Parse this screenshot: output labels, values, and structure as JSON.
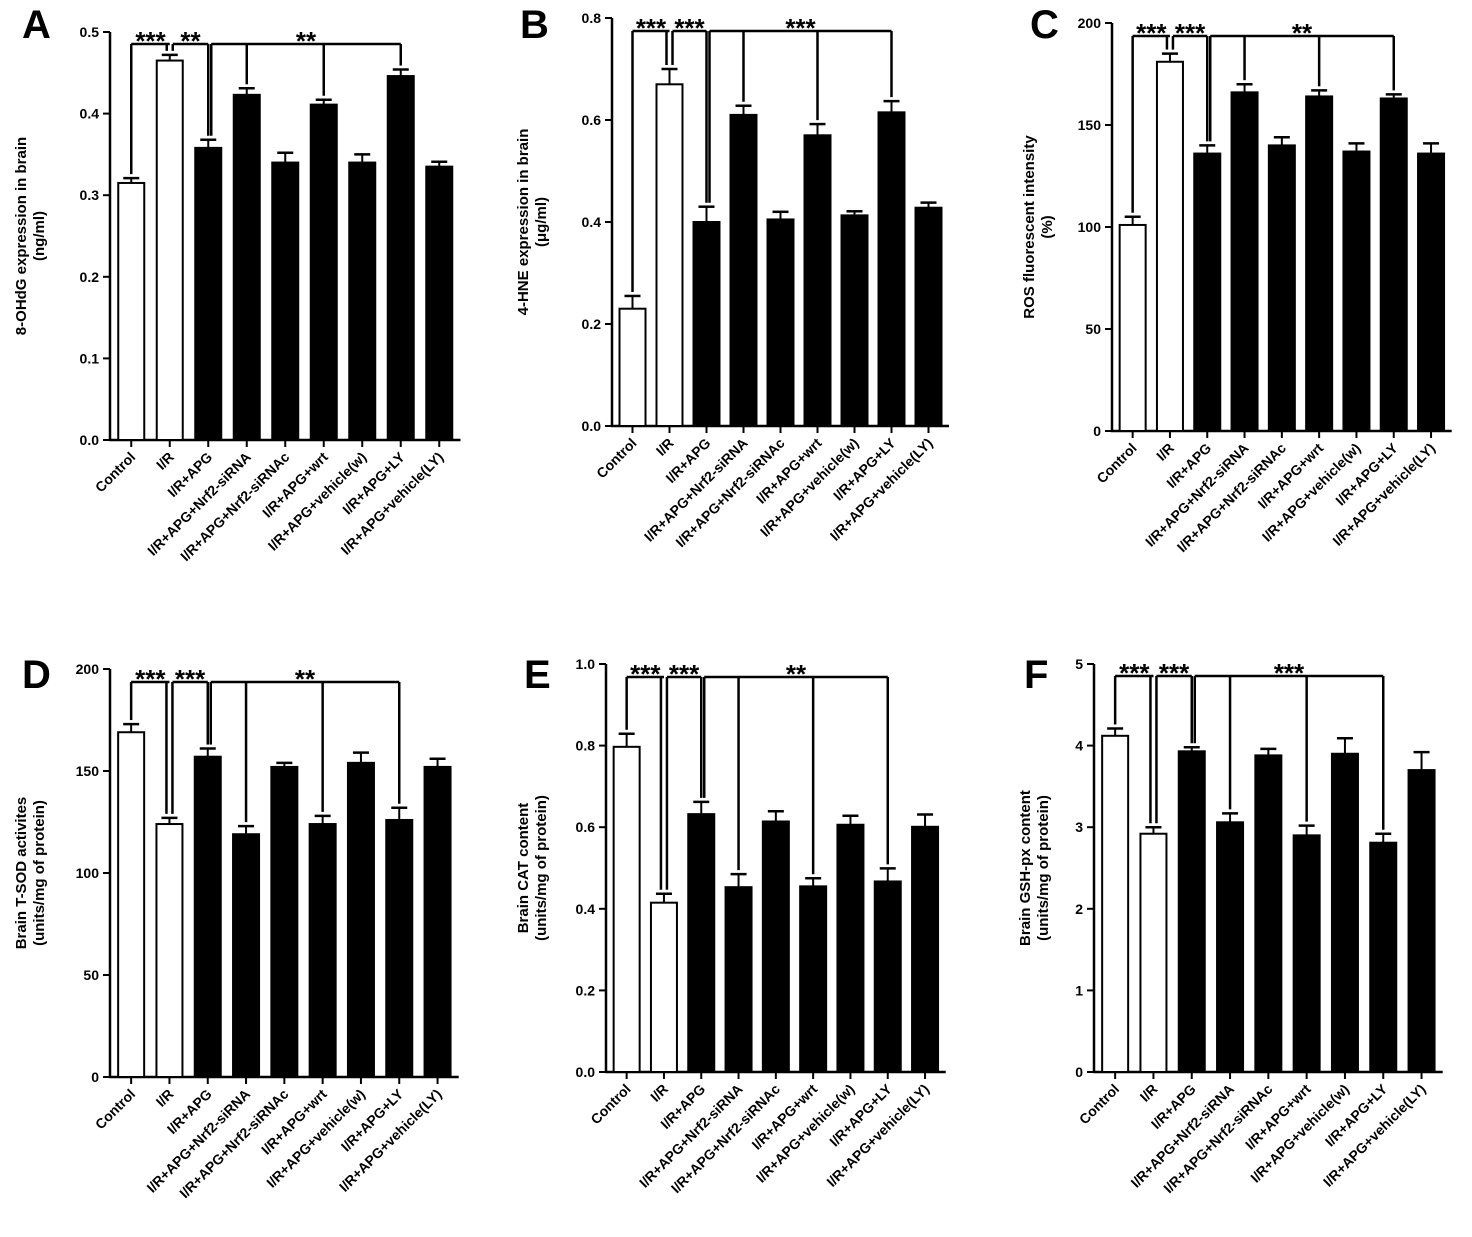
{
  "figure": {
    "colors": {
      "white_bar": "#ffffff",
      "black_bar": "#000000",
      "stroke": "#000000"
    }
  },
  "chart_data": [
    {
      "panel": "A",
      "type": "bar",
      "ylabel_lines": [
        "8-OHdG expression in brain",
        "(ng/ml)"
      ],
      "ylim": [
        0,
        0.5
      ],
      "yticks": [
        "0.0",
        "0.1",
        "0.2",
        "0.3",
        "0.4",
        "0.5"
      ],
      "tick_values": [
        0,
        0.1,
        0.2,
        0.3,
        0.4,
        0.5
      ],
      "categories": [
        "Control",
        "I/R",
        "I/R+APG",
        "I/R+APG+Nrf2-siRNA",
        "I/R+APG+Nrf2-siRNAc",
        "I/R+APG+wrt",
        "I/R+APG+vehicle(w)",
        "I/R+APG+LY",
        "I/R+APG+vehicle(LY)"
      ],
      "values": [
        0.315,
        0.465,
        0.358,
        0.423,
        0.34,
        0.411,
        0.34,
        0.446,
        0.335
      ],
      "errors": [
        0.006,
        0.007,
        0.01,
        0.008,
        0.012,
        0.006,
        0.01,
        0.008,
        0.006
      ],
      "fill": [
        "white",
        "white",
        "black",
        "black",
        "black",
        "black",
        "black",
        "black",
        "black"
      ],
      "significance": [
        {
          "stars": "***",
          "from": 0,
          "to": [
            1
          ]
        },
        {
          "stars": "**",
          "from": 1,
          "to": [
            2
          ]
        },
        {
          "stars": "**",
          "from": 2,
          "to": [
            3,
            5,
            7
          ]
        }
      ]
    },
    {
      "panel": "B",
      "type": "bar",
      "ylabel_lines": [
        "4-HNE expression in brain",
        "(μg/ml)"
      ],
      "ylim": [
        0,
        0.8
      ],
      "yticks": [
        "0.0",
        "0.2",
        "0.4",
        "0.6",
        "0.8"
      ],
      "tick_values": [
        0,
        0.2,
        0.4,
        0.6,
        0.8
      ],
      "categories": [
        "Control",
        "I/R",
        "I/R+APG",
        "I/R+APG+Nrf2-siRNA",
        "I/R+APG+Nrf2-siRNAc",
        "I/R+APG+wrt",
        "I/R+APG+vehicle(w)",
        "I/R+APG+LY",
        "I/R+APG+vehicle(LY)"
      ],
      "values": [
        0.23,
        0.67,
        0.4,
        0.61,
        0.405,
        0.57,
        0.413,
        0.615,
        0.428
      ],
      "errors": [
        0.025,
        0.03,
        0.03,
        0.018,
        0.015,
        0.022,
        0.008,
        0.022,
        0.01
      ],
      "fill": [
        "white",
        "white",
        "black",
        "black",
        "black",
        "black",
        "black",
        "black",
        "black"
      ],
      "significance": [
        {
          "stars": "***",
          "from": 0,
          "to": [
            1
          ]
        },
        {
          "stars": "***",
          "from": 1,
          "to": [
            2
          ]
        },
        {
          "stars": "***",
          "from": 2,
          "to": [
            3,
            5,
            7
          ]
        }
      ]
    },
    {
      "panel": "C",
      "type": "bar",
      "ylabel_lines": [
        "ROS fluorescent intensity",
        "(%)"
      ],
      "ylim": [
        0,
        200
      ],
      "yticks": [
        "0",
        "50",
        "100",
        "150",
        "200"
      ],
      "tick_values": [
        0,
        50,
        100,
        150,
        200
      ],
      "categories": [
        "Control",
        "I/R",
        "I/R+APG",
        "I/R+APG+Nrf2-siRNA",
        "I/R+APG+Nrf2-siRNAc",
        "I/R+APG+wrt",
        "I/R+APG+vehicle(w)",
        "I/R+APG+LY",
        "I/R+APG+vehicle(LY)"
      ],
      "values": [
        101,
        181,
        136,
        166,
        140,
        164,
        137,
        163,
        136
      ],
      "errors": [
        4,
        4,
        4,
        4,
        4,
        3,
        4,
        2,
        5
      ],
      "fill": [
        "white",
        "white",
        "black",
        "black",
        "black",
        "black",
        "black",
        "black",
        "black"
      ],
      "significance": [
        {
          "stars": "***",
          "from": 0,
          "to": [
            1
          ]
        },
        {
          "stars": "***",
          "from": 1,
          "to": [
            2
          ]
        },
        {
          "stars": "**",
          "from": 2,
          "to": [
            3,
            5,
            7
          ]
        }
      ]
    },
    {
      "panel": "D",
      "type": "bar",
      "ylabel_lines": [
        "Brain T-SOD activites",
        "(units/mg of protein)"
      ],
      "ylim": [
        0,
        200
      ],
      "yticks": [
        "0",
        "50",
        "100",
        "150",
        "200"
      ],
      "tick_values": [
        0,
        50,
        100,
        150,
        200
      ],
      "categories": [
        "Control",
        "I/R",
        "I/R+APG",
        "I/R+APG+Nrf2-siRNA",
        "I/R+APG+Nrf2-siRNAc",
        "I/R+APG+wrt",
        "I/R+APG+vehicle(w)",
        "I/R+APG+LY",
        "I/R+APG+vehicle(LY)"
      ],
      "values": [
        169,
        124,
        157,
        119,
        152,
        124,
        154,
        126,
        152
      ],
      "errors": [
        4,
        3,
        4,
        4,
        2,
        4,
        5,
        6,
        4
      ],
      "fill": [
        "white",
        "white",
        "black",
        "black",
        "black",
        "black",
        "black",
        "black",
        "black"
      ],
      "significance": [
        {
          "stars": "***",
          "from": 0,
          "to": [
            1
          ]
        },
        {
          "stars": "***",
          "from": 1,
          "to": [
            2
          ]
        },
        {
          "stars": "**",
          "from": 2,
          "to": [
            3,
            5,
            7
          ]
        }
      ]
    },
    {
      "panel": "E",
      "type": "bar",
      "ylabel_lines": [
        "Brain CAT content",
        "(units/mg of protein)"
      ],
      "ylim": [
        0,
        1.0
      ],
      "yticks": [
        "0.0",
        "0.2",
        "0.4",
        "0.6",
        "0.8",
        "1.0"
      ],
      "tick_values": [
        0,
        0.2,
        0.4,
        0.6,
        0.8,
        1.0
      ],
      "categories": [
        "Control",
        "I/R",
        "I/R+APG",
        "I/R+APG+Nrf2-siRNA",
        "I/R+APG+Nrf2-siRNAc",
        "I/R+APG+wrt",
        "I/R+APG+vehicle(w)",
        "I/R+APG+LY",
        "I/R+APG+vehicle(LY)"
      ],
      "values": [
        0.797,
        0.415,
        0.632,
        0.453,
        0.614,
        0.455,
        0.606,
        0.467,
        0.601
      ],
      "errors": [
        0.032,
        0.022,
        0.03,
        0.032,
        0.025,
        0.02,
        0.022,
        0.032,
        0.03
      ],
      "fill": [
        "white",
        "white",
        "black",
        "black",
        "black",
        "black",
        "black",
        "black",
        "black"
      ],
      "significance": [
        {
          "stars": "***",
          "from": 0,
          "to": [
            1
          ]
        },
        {
          "stars": "***",
          "from": 1,
          "to": [
            2
          ]
        },
        {
          "stars": "**",
          "from": 2,
          "to": [
            3,
            5,
            7
          ]
        }
      ]
    },
    {
      "panel": "F",
      "type": "bar",
      "ylabel_lines": [
        "Brain GSH-px content",
        "(units/mg of protein)"
      ],
      "ylim": [
        0,
        5
      ],
      "yticks": [
        "0",
        "1",
        "2",
        "3",
        "4",
        "5"
      ],
      "tick_values": [
        0,
        1,
        2,
        3,
        4,
        5
      ],
      "categories": [
        "Control",
        "I/R",
        "I/R+APG",
        "I/R+APG+Nrf2-siRNA",
        "I/R+APG+Nrf2-siRNAc",
        "I/R+APG+wrt",
        "I/R+APG+vehicle(w)",
        "I/R+APG+LY",
        "I/R+APG+vehicle(LY)"
      ],
      "values": [
        4.12,
        2.92,
        3.93,
        3.06,
        3.88,
        2.9,
        3.9,
        2.81,
        3.7
      ],
      "errors": [
        0.09,
        0.08,
        0.05,
        0.11,
        0.08,
        0.12,
        0.19,
        0.11,
        0.22
      ],
      "fill": [
        "white",
        "white",
        "black",
        "black",
        "black",
        "black",
        "black",
        "black",
        "black"
      ],
      "significance": [
        {
          "stars": "***",
          "from": 0,
          "to": [
            1
          ]
        },
        {
          "stars": "***",
          "from": 1,
          "to": [
            2
          ]
        },
        {
          "stars": "***",
          "from": 2,
          "to": [
            3,
            5,
            7
          ]
        }
      ]
    }
  ]
}
